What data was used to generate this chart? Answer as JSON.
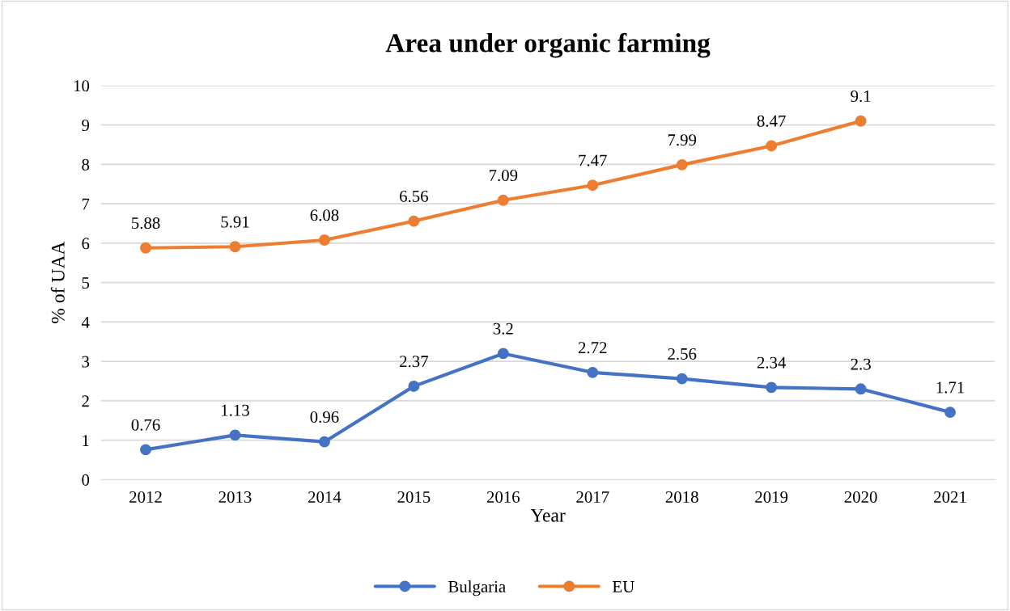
{
  "chart_data": {
    "type": "line",
    "title": "Area under organic farming",
    "xlabel": "Year",
    "ylabel": "% of UAA",
    "categories": [
      "2012",
      "2013",
      "2014",
      "2015",
      "2016",
      "2017",
      "2018",
      "2019",
      "2020",
      "2021"
    ],
    "series": [
      {
        "name": "Bulgaria",
        "color": "#4472c4",
        "values": [
          0.76,
          1.13,
          0.96,
          2.37,
          3.2,
          2.72,
          2.56,
          2.34,
          2.3,
          1.71
        ]
      },
      {
        "name": "EU",
        "color": "#ed7d31",
        "values": [
          5.88,
          5.91,
          6.08,
          6.56,
          7.09,
          7.47,
          7.99,
          8.47,
          9.1,
          null
        ]
      }
    ],
    "ylim": [
      0,
      10
    ],
    "yticks": [
      0,
      1,
      2,
      3,
      4,
      5,
      6,
      7,
      8,
      9,
      10
    ],
    "grid": "y",
    "legend": "bottom",
    "marker": "circle",
    "line_style": "solid",
    "data_labels": true
  }
}
